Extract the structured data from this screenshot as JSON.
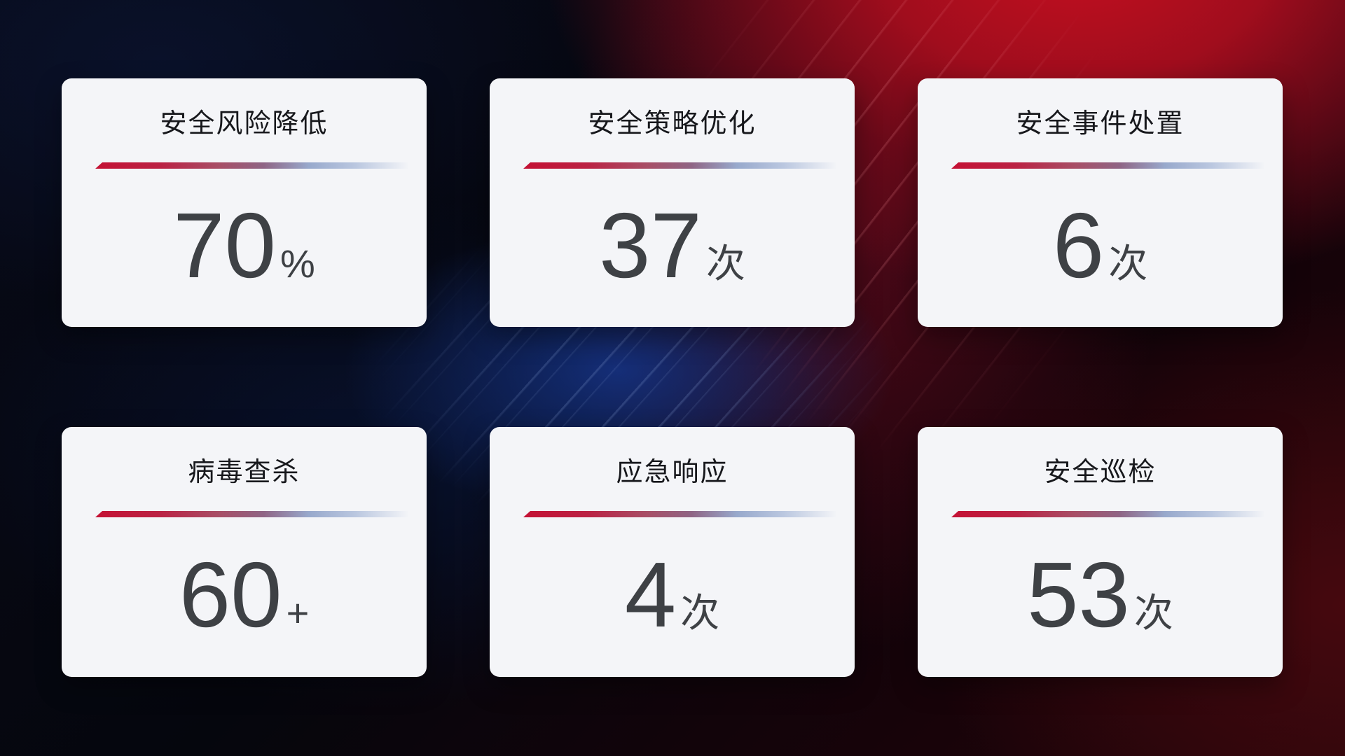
{
  "cards": [
    {
      "title": "安全风险降低",
      "value": "70",
      "unit": "%"
    },
    {
      "title": "安全策略优化",
      "value": "37",
      "unit": "次"
    },
    {
      "title": "安全事件处置",
      "value": "6",
      "unit": "次"
    },
    {
      "title": "病毒查杀",
      "value": "60",
      "unit": "+"
    },
    {
      "title": "应急响应",
      "value": "4",
      "unit": "次"
    },
    {
      "title": "安全巡检",
      "value": "53",
      "unit": "次"
    }
  ],
  "colors": {
    "card_background": "#f4f5f8",
    "title_text": "#17181c",
    "number_text": "#3e4145",
    "divider_red": "#c41134",
    "divider_purple": "#8f6585",
    "divider_blue": "#b9c6df",
    "background_red_glow": "#c50f20",
    "background_blue_glow": "#163488"
  }
}
